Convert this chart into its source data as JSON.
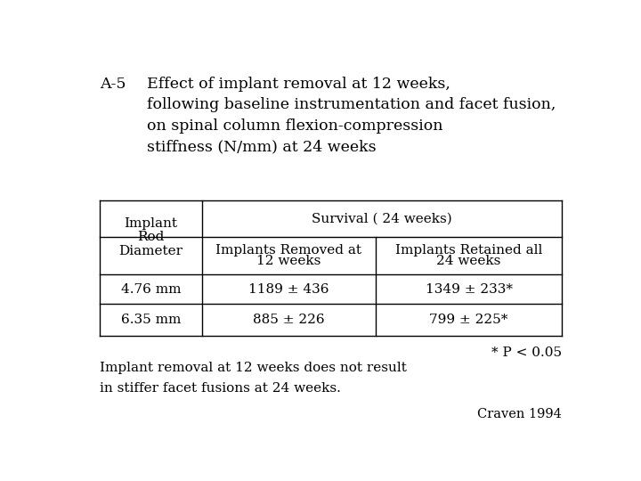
{
  "title_prefix": "A-5",
  "title_lines": [
    "Effect of implant removal at 12 weeks,",
    "following baseline instrumentation and facet fusion,",
    "on spinal column flexion-compression",
    "stiffness (N/mm) at 24 weeks"
  ],
  "col_header_left": [
    "Implant",
    "Rod",
    "Diameter"
  ],
  "col_header_mid_top": "Survival ( 24 weeks)",
  "col_header_mid": [
    "Implants Removed at",
    "12 weeks"
  ],
  "col_header_right": [
    "Implants Retained all",
    "24 weeks"
  ],
  "rows": [
    {
      "label": "4.76 mm",
      "mid": "1189 ± 436",
      "right": "1349 ± 233*"
    },
    {
      "label": "6.35 mm",
      "mid": "885 ± 226",
      "right": "799 ± 225*"
    }
  ],
  "footnote_pvalue": "* P < 0.05",
  "footnote_text": [
    "Implant removal at 12 weeks does not result",
    "in stiffer facet fusions at 24 weeks."
  ],
  "citation": "Craven 1994",
  "bg_color": "#ffffff",
  "text_color": "#000000",
  "table_line_color": "#000000",
  "font_size_title": 12.5,
  "font_size_table": 11.0,
  "font_size_footnote": 11.0,
  "font_size_citation": 10.5
}
